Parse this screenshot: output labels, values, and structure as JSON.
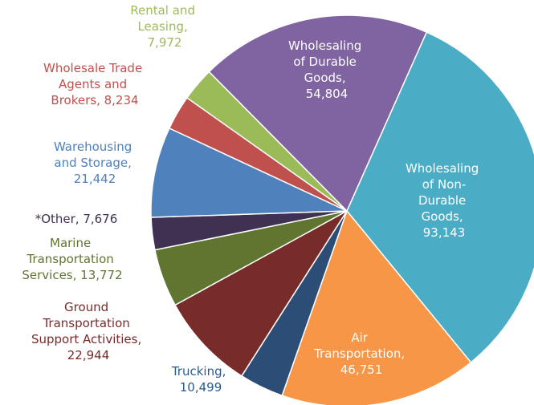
{
  "chart_data": {
    "type": "pie",
    "labels": [
      "Wholesaling of Non-Durable Goods, 93,143",
      "Air Transportation, 46,751",
      "Trucking, 10,499",
      "Ground Transportation Support Activities, 22,944",
      "Marine Transportation Services, 13,772",
      "*Other, 7,676",
      "Warehousing and Storage, 21,442",
      "Wholesale Trade Agents and Brokers, 8,234",
      "Rental and Leasing, 7,972",
      "Wholesaling of Durable Goods, 54,804"
    ],
    "values": [
      93143,
      46751,
      10499,
      22944,
      13772,
      7676,
      21442,
      8234,
      7972,
      54804
    ],
    "colors": [
      "#4bacc6",
      "#f79646",
      "#2c4d75",
      "#772c2a",
      "#5f7530",
      "#3f3151",
      "#4f81bd",
      "#c0504d",
      "#9bbb59",
      "#8064a2"
    ]
  }
}
